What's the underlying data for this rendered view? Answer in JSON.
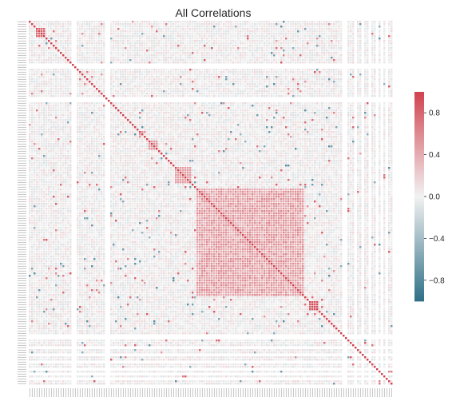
{
  "chart_data": {
    "type": "heatmap",
    "title": "All Correlations",
    "matrix_size": 152,
    "diagonal_value": 1.0,
    "colormap": {
      "name": "diverging-blue-red",
      "low_color": "#2f6f86",
      "mid_color": "#f2f2f2",
      "high_color": "#d0434f"
    },
    "vrange": [
      -1.0,
      1.0
    ],
    "colorbar_ticks": [
      {
        "value": 0.8,
        "label": "0.8"
      },
      {
        "value": 0.4,
        "label": "0.4"
      },
      {
        "value": 0.0,
        "label": "0.0"
      },
      {
        "value": -0.4,
        "label": "−0.4"
      },
      {
        "value": -0.8,
        "label": "−0.8"
      }
    ],
    "blocks": [
      {
        "start": 3,
        "end": 6,
        "value": 0.8
      },
      {
        "start": 46,
        "end": 47,
        "value": 0.6
      },
      {
        "start": 50,
        "end": 53,
        "value": 0.55
      },
      {
        "start": 61,
        "end": 67,
        "value": 0.5
      },
      {
        "start": 117,
        "end": 120,
        "value": 0.9
      }
    ],
    "dense_block": {
      "start": 70,
      "end": 114,
      "value": 0.65
    },
    "empty_columns": [
      18,
      19,
      32,
      33,
      131,
      132,
      136,
      139,
      142,
      145,
      147,
      149
    ],
    "grid": false,
    "legend": "colorbar-right"
  }
}
